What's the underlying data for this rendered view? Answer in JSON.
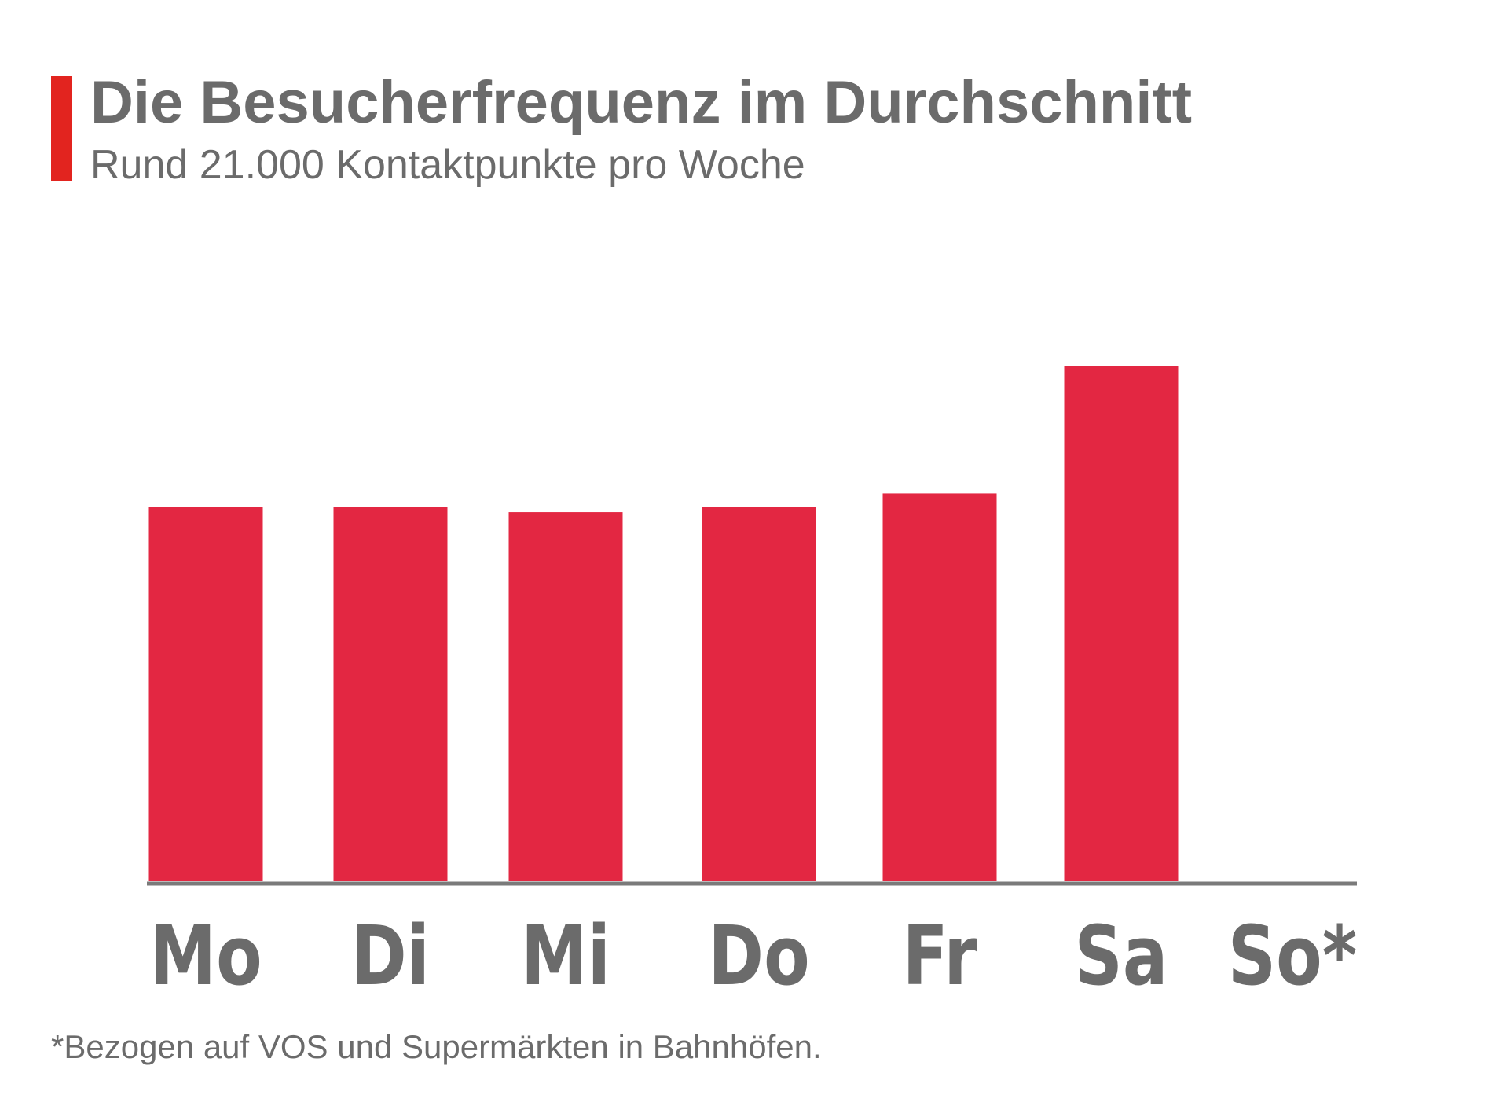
{
  "header": {
    "title": "Die Besucherfrequenz im Durchschnitt",
    "subtitle": "Rund 21.000 Kontaktpunkte pro Woche"
  },
  "footnote": "*Bezogen auf VOS und Supermärkten in Bahnhöfen.",
  "colors": {
    "accent": "#e2241f",
    "bar": "#e32742",
    "axis": "#7a7a7a",
    "text": "#6b6b6b"
  },
  "chart_data": {
    "type": "bar",
    "title": "Die Besucherfrequenz im Durchschnitt",
    "subtitle": "Rund 21.000 Kontaktpunkte pro Woche",
    "categories": [
      "Mo",
      "Di",
      "Mi",
      "Do",
      "Fr",
      "Sa",
      "So*"
    ],
    "values": [
      3020,
      3020,
      2980,
      3020,
      3130,
      4160,
      0
    ],
    "xlabel": "",
    "ylabel": "",
    "ylim": [
      0,
      5000
    ],
    "grid": false,
    "legend": "none",
    "y_axis_visible": false
  }
}
